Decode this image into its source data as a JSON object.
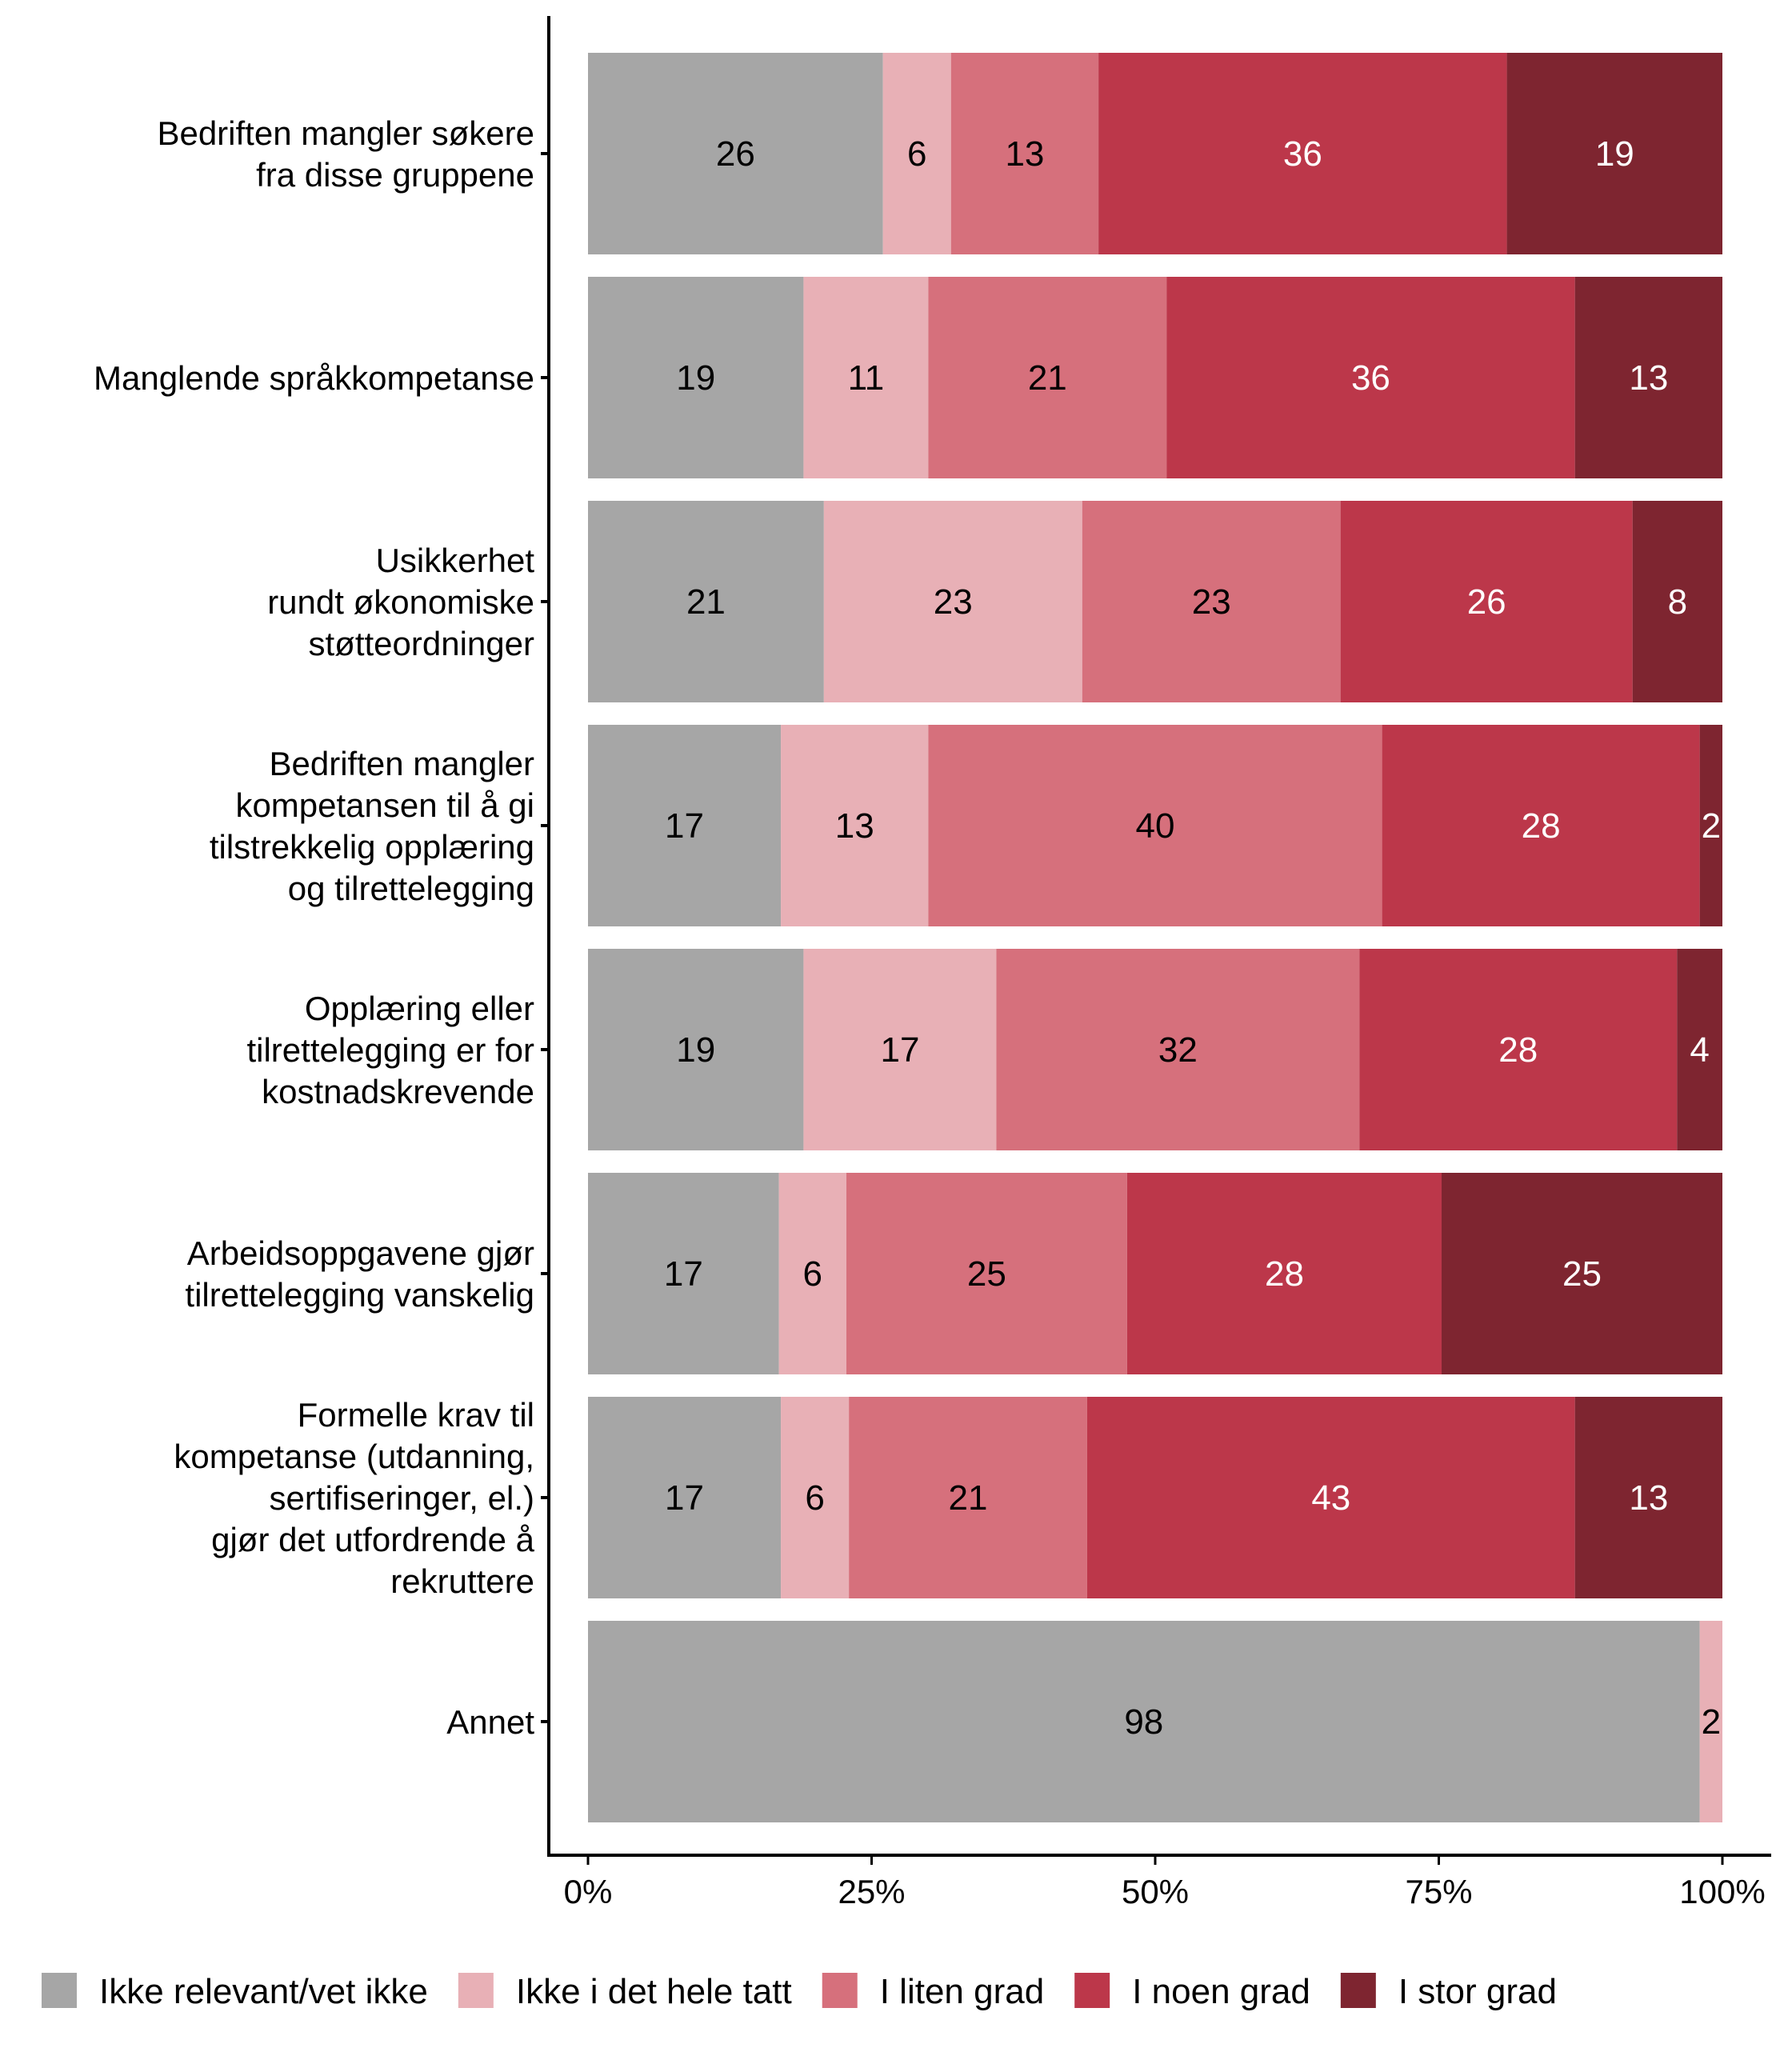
{
  "chart_data": {
    "type": "bar",
    "orientation": "horizontal",
    "stacked": true,
    "normalized": true,
    "title": "",
    "xlabel": "",
    "ylabel": "",
    "xlim": [
      0,
      100
    ],
    "x_ticks": [
      0,
      25,
      50,
      75,
      100
    ],
    "x_tick_labels": [
      "0%",
      "25%",
      "50%",
      "75%",
      "100%"
    ],
    "grid": false,
    "legend_position": "bottom",
    "categories": [
      [
        "Bedriften mangler søkere",
        "fra disse gruppene"
      ],
      [
        "Manglende språkkompetanse"
      ],
      [
        "Usikkerhet",
        "rundt økonomiske",
        "støtteordninger"
      ],
      [
        "Bedriften mangler",
        "kompetansen til å gi",
        "tilstrekkelig opplæring",
        "og tilrettelegging"
      ],
      [
        "Opplæring eller",
        "tilrettelegging er for",
        "kostnadskrevende"
      ],
      [
        "Arbeidsoppgavene gjør",
        "tilrettelegging vanskelig"
      ],
      [
        "Formelle krav til",
        "kompetanse (utdanning,",
        "sertifiseringer, el.)",
        "gjør det utfordrende å",
        "rekruttere"
      ],
      [
        "Annet"
      ]
    ],
    "series": [
      {
        "name": "Ikke relevant/vet ikke",
        "color": "#a6a6a6",
        "label_color": "#000000",
        "values": [
          26,
          19,
          21,
          17,
          19,
          17,
          17,
          98
        ]
      },
      {
        "name": "Ikke i det hele tatt",
        "color": "#e8b0b6",
        "label_color": "#000000",
        "values": [
          6,
          11,
          23,
          13,
          17,
          6,
          6,
          2
        ]
      },
      {
        "name": "I liten grad",
        "color": "#d6707c",
        "label_color": "#000000",
        "values": [
          13,
          21,
          23,
          40,
          32,
          25,
          21,
          0
        ]
      },
      {
        "name": "I noen grad",
        "color": "#bc374a",
        "label_color": "#ffffff",
        "values": [
          36,
          36,
          26,
          28,
          28,
          28,
          43,
          0
        ]
      },
      {
        "name": "I stor grad",
        "color": "#7e2530",
        "label_color": "#ffffff",
        "values": [
          19,
          13,
          8,
          2,
          4,
          25,
          13,
          0
        ]
      }
    ]
  }
}
